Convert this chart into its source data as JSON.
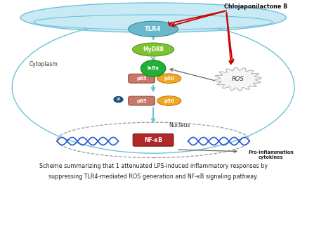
{
  "figsize": [
    4.74,
    3.26
  ],
  "dpi": 100,
  "bg_color": "#ffffff",
  "title_text": "Chlojaponilactone B",
  "caption_line1": "Scheme summarizing that 1 attenuated LPS-induced inflammatory responses by",
  "caption_line2": "suppressing TLR4-mediated ROS generation and NF-κB signaling pathway.",
  "tlr4_label": "TLR4",
  "myd88_label": "MyD88",
  "ikba_label": "IκBα",
  "p65_label": "p65",
  "p50_label": "p50",
  "nfkb_label": "NF-κB",
  "ros_label": "ROS",
  "cytoplasm_label": "Cytoplasm",
  "nucleus_label": "Nucleus",
  "pro_inflam_label": "Pro-inflammation\ncytokines",
  "p_label": "P",
  "tlr4_color": "#6ab8cc",
  "myd88_color": "#7dc230",
  "ikba_color": "#22b035",
  "p65_color": "#c87868",
  "p50_color": "#f0a820",
  "nfkb_color": "#b02828",
  "arrow_color": "#70c0d8",
  "red_arrow_color": "#cc0000",
  "gray_arrow_color": "#666666",
  "dna_color": "#2255cc",
  "membrane_color": "#c8eaf5",
  "membrane_edge": "#70c0d8",
  "cyto_edge": "#70c0d8",
  "nucleus_edge": "#999999",
  "p_circle_color": "#1a5a8a"
}
